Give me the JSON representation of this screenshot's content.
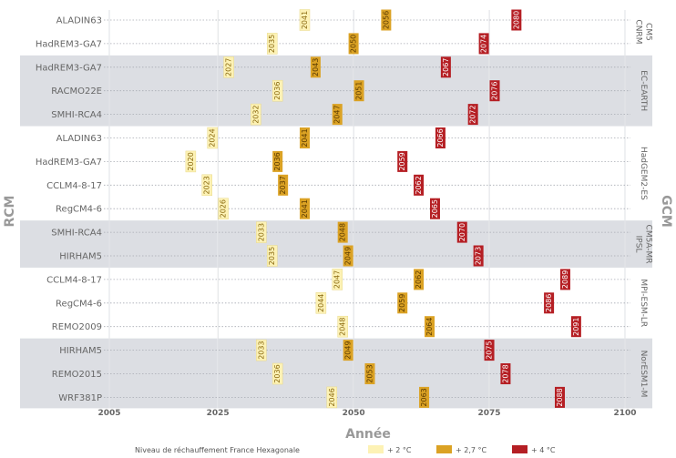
{
  "chart_data": {
    "type": "scatter",
    "xlabel": "Année",
    "ylabel_left": "RCM",
    "ylabel_right": "GCM",
    "xlim": [
      2005,
      2100
    ],
    "xticks": [
      2005,
      2025,
      2050,
      2075,
      2100
    ],
    "legend": {
      "title": "Niveau de réchauffement France Hexagonale",
      "entries": [
        {
          "label": "+ 2 °C",
          "color": "#fdf2b5"
        },
        {
          "label": "+ 2,7 °C",
          "color": "#dba224"
        },
        {
          "label": "+ 4 °C",
          "color": "#b51f24"
        }
      ],
      "placement": "bottom-center"
    },
    "groups": [
      {
        "gcm": "CNRM CM5",
        "gcm_lines": [
          "CNRM",
          "CM5"
        ],
        "shaded": false,
        "rows": [
          {
            "rcm": "ALADIN63",
            "v2": 2041,
            "v27": 2056,
            "v4": 2080
          },
          {
            "rcm": "HadREM3-GA7",
            "v2": 2035,
            "v27": 2050,
            "v4": 2074
          }
        ]
      },
      {
        "gcm": "EC-EARTH",
        "gcm_lines": [
          "EC-EARTH"
        ],
        "shaded": true,
        "rows": [
          {
            "rcm": "HadREM3-GA7",
            "v2": 2027,
            "v27": 2043,
            "v4": 2067
          },
          {
            "rcm": "RACMO22E",
            "v2": 2036,
            "v27": 2051,
            "v4": 2076
          },
          {
            "rcm": "SMHI-RCA4",
            "v2": 2032,
            "v27": 2047,
            "v4": 2072
          }
        ]
      },
      {
        "gcm": "HadGEM2-ES",
        "gcm_lines": [
          "HadGEM2-ES"
        ],
        "shaded": false,
        "rows": [
          {
            "rcm": "ALADIN63",
            "v2": 2024,
            "v27": 2041,
            "v4": 2066
          },
          {
            "rcm": "HadREM3-GA7",
            "v2": 2020,
            "v27": 2036,
            "v4": 2059
          },
          {
            "rcm": "CCLM4-8-17",
            "v2": 2023,
            "v27": 2037,
            "v4": 2062
          },
          {
            "rcm": "RegCM4-6",
            "v2": 2026,
            "v27": 2041,
            "v4": 2065
          }
        ]
      },
      {
        "gcm": "IPSL CM5A-MR",
        "gcm_lines": [
          "IPSL",
          "CM5A-MR"
        ],
        "shaded": true,
        "rows": [
          {
            "rcm": "SMHI-RCA4",
            "v2": 2033,
            "v27": 2048,
            "v4": 2070
          },
          {
            "rcm": "HIRHAM5",
            "v2": 2035,
            "v27": 2049,
            "v4": 2073
          }
        ]
      },
      {
        "gcm": "MPI-ESM-LR",
        "gcm_lines": [
          "MPI-ESM-LR"
        ],
        "shaded": false,
        "rows": [
          {
            "rcm": "CCLM4-8-17",
            "v2": 2047,
            "v27": 2062,
            "v4": 2089
          },
          {
            "rcm": "RegCM4-6",
            "v2": 2044,
            "v27": 2059,
            "v4": 2086
          },
          {
            "rcm": "REMO2009",
            "v2": 2048,
            "v27": 2064,
            "v4": 2091
          }
        ]
      },
      {
        "gcm": "NorESM1-M",
        "gcm_lines": [
          "NorESM1-M"
        ],
        "shaded": true,
        "rows": [
          {
            "rcm": "HIRHAM5",
            "v2": 2033,
            "v27": 2049,
            "v4": 2075
          },
          {
            "rcm": "REMO2015",
            "v2": 2036,
            "v27": 2053,
            "v4": 2078
          },
          {
            "rcm": "WRF381P",
            "v2": 2046,
            "v27": 2063,
            "v4": 2088
          }
        ]
      }
    ]
  }
}
